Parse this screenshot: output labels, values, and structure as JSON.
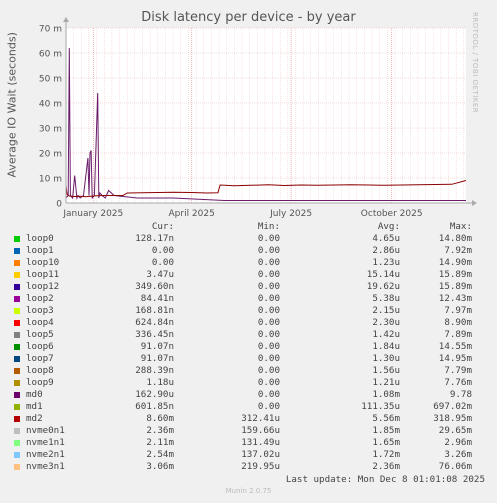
{
  "chart_data": {
    "type": "line",
    "title": "Disk latency per device - by year",
    "ylabel": "Average IO Wait (seconds)",
    "ylim": [
      0,
      0.07
    ],
    "y_ticks": [
      {
        "value": 0,
        "label": "0"
      },
      {
        "value": 0.01,
        "label": "10 m"
      },
      {
        "value": 0.02,
        "label": "20 m"
      },
      {
        "value": 0.03,
        "label": "30 m"
      },
      {
        "value": 0.04,
        "label": "40 m"
      },
      {
        "value": 0.05,
        "label": "50 m"
      },
      {
        "value": 0.06,
        "label": "60 m"
      },
      {
        "value": 0.07,
        "label": "70 m"
      }
    ],
    "x_range": [
      "2024-12-07",
      "2025-12-08"
    ],
    "x_ticks": [
      {
        "date": "2025-01-01",
        "label": "January 2025"
      },
      {
        "date": "2025-04-01",
        "label": "April 2025"
      },
      {
        "date": "2025-07-01",
        "label": "July 2025"
      },
      {
        "date": "2025-10-01",
        "label": "October 2025"
      }
    ],
    "grid": true,
    "series": [
      {
        "name": "md0",
        "color": "#6a1b6a",
        "x": [
          "2024-12-07",
          "2024-12-09",
          "2024-12-10",
          "2024-12-11",
          "2024-12-13",
          "2024-12-15",
          "2024-12-17",
          "2024-12-18",
          "2024-12-20",
          "2024-12-23",
          "2024-12-27",
          "2024-12-28",
          "2024-12-29",
          "2024-12-30",
          "2024-12-31",
          "2025-01-02",
          "2025-01-05",
          "2025-01-06",
          "2025-01-07",
          "2025-01-09",
          "2025-01-12",
          "2025-01-15",
          "2025-01-20",
          "2025-02-10",
          "2025-03-15",
          "2025-05-01",
          "2025-07-01",
          "2025-09-01",
          "2025-11-01",
          "2025-12-08"
        ],
        "y": [
          0.002,
          0.003,
          0.062,
          0.003,
          0.002,
          0.011,
          0.002,
          0.003,
          0.002,
          0.003,
          0.018,
          0.003,
          0.02,
          0.021,
          0.002,
          0.003,
          0.044,
          0.002,
          0.004,
          0.003,
          0.002,
          0.005,
          0.003,
          0.002,
          0.002,
          0.001,
          0.001,
          0.001,
          0.001,
          0.001
        ]
      },
      {
        "name": "md2",
        "color": "#8b0000",
        "x": [
          "2024-12-07",
          "2024-12-08",
          "2024-12-10",
          "2024-12-15",
          "2024-12-20",
          "2024-12-25",
          "2025-01-01",
          "2025-01-10",
          "2025-01-20",
          "2025-01-28",
          "2025-02-01",
          "2025-02-15",
          "2025-03-01",
          "2025-03-15",
          "2025-04-01",
          "2025-04-15",
          "2025-04-25",
          "2025-04-27",
          "2025-05-10",
          "2025-05-25",
          "2025-06-10",
          "2025-06-25",
          "2025-07-10",
          "2025-07-25",
          "2025-08-10",
          "2025-08-25",
          "2025-09-10",
          "2025-09-25",
          "2025-10-10",
          "2025-10-25",
          "2025-11-10",
          "2025-11-25",
          "2025-12-08"
        ],
        "y": [
          0.007,
          0.0035,
          0.0028,
          0.0026,
          0.0027,
          0.0025,
          0.0028,
          0.003,
          0.003,
          0.003,
          0.004,
          0.0041,
          0.0042,
          0.0043,
          0.0042,
          0.004,
          0.0041,
          0.0072,
          0.0069,
          0.0071,
          0.0073,
          0.007,
          0.0072,
          0.0071,
          0.0072,
          0.0073,
          0.0072,
          0.0071,
          0.0072,
          0.0073,
          0.0074,
          0.0075,
          0.009
        ]
      }
    ]
  },
  "legend": {
    "headers": {
      "cur": "Cur:",
      "min": "Min:",
      "avg": "Avg:",
      "max": "Max:"
    },
    "rows": [
      {
        "name": "loop0",
        "color": "#00cc00",
        "cur": "128.17n",
        "min": "0.00",
        "avg": "4.65u",
        "max": "14.80m"
      },
      {
        "name": "loop1",
        "color": "#0066b3",
        "cur": "0.00",
        "min": "0.00",
        "avg": "2.86u",
        "max": "7.92m"
      },
      {
        "name": "loop10",
        "color": "#ff8000",
        "cur": "0.00",
        "min": "0.00",
        "avg": "1.23u",
        "max": "14.90m"
      },
      {
        "name": "loop11",
        "color": "#ffcc00",
        "cur": "3.47u",
        "min": "0.00",
        "avg": "15.14u",
        "max": "15.89m"
      },
      {
        "name": "loop12",
        "color": "#330099",
        "cur": "349.60n",
        "min": "0.00",
        "avg": "19.62u",
        "max": "15.89m"
      },
      {
        "name": "loop2",
        "color": "#990099",
        "cur": "84.41n",
        "min": "0.00",
        "avg": "5.38u",
        "max": "12.43m"
      },
      {
        "name": "loop3",
        "color": "#ccff00",
        "cur": "168.81n",
        "min": "0.00",
        "avg": "2.15u",
        "max": "7.97m"
      },
      {
        "name": "loop4",
        "color": "#ff0000",
        "cur": "624.84n",
        "min": "0.00",
        "avg": "2.30u",
        "max": "8.90m"
      },
      {
        "name": "loop5",
        "color": "#808080",
        "cur": "336.45n",
        "min": "0.00",
        "avg": "1.42u",
        "max": "7.89m"
      },
      {
        "name": "loop6",
        "color": "#008f00",
        "cur": "91.07n",
        "min": "0.00",
        "avg": "1.84u",
        "max": "14.55m"
      },
      {
        "name": "loop7",
        "color": "#00487d",
        "cur": "91.07n",
        "min": "0.00",
        "avg": "1.30u",
        "max": "14.95m"
      },
      {
        "name": "loop8",
        "color": "#b35a00",
        "cur": "288.39n",
        "min": "0.00",
        "avg": "1.56u",
        "max": "7.79m"
      },
      {
        "name": "loop9",
        "color": "#b38f00",
        "cur": "1.18u",
        "min": "0.00",
        "avg": "1.21u",
        "max": "7.76m"
      },
      {
        "name": "md0",
        "color": "#6b006b",
        "cur": "162.90u",
        "min": "0.00",
        "avg": "1.08m",
        "max": "9.78"
      },
      {
        "name": "md1",
        "color": "#8fb300",
        "cur": "601.85n",
        "min": "0.00",
        "avg": "111.35u",
        "max": "697.02m"
      },
      {
        "name": "md2",
        "color": "#b30000",
        "cur": "8.60m",
        "min": "312.41u",
        "avg": "5.56m",
        "max": "318.95m"
      },
      {
        "name": "nvme0n1",
        "color": "#bebebe",
        "cur": "2.36m",
        "min": "159.66u",
        "avg": "1.85m",
        "max": "29.65m"
      },
      {
        "name": "nvme1n1",
        "color": "#80ff80",
        "cur": "2.11m",
        "min": "131.49u",
        "avg": "1.65m",
        "max": "2.96m"
      },
      {
        "name": "nvme2n1",
        "color": "#80c9ff",
        "cur": "2.54m",
        "min": "137.02u",
        "avg": "1.72m",
        "max": "3.26m"
      },
      {
        "name": "nvme3n1",
        "color": "#ffc080",
        "cur": "3.06m",
        "min": "219.95u",
        "avg": "2.36m",
        "max": "76.06m"
      }
    ]
  },
  "last_update": "Last update: Mon Dec  8 01:01:08 2025",
  "side_label": "RRDTOOL / TOBI OETIKER",
  "footer": "Munin 2.0.75"
}
